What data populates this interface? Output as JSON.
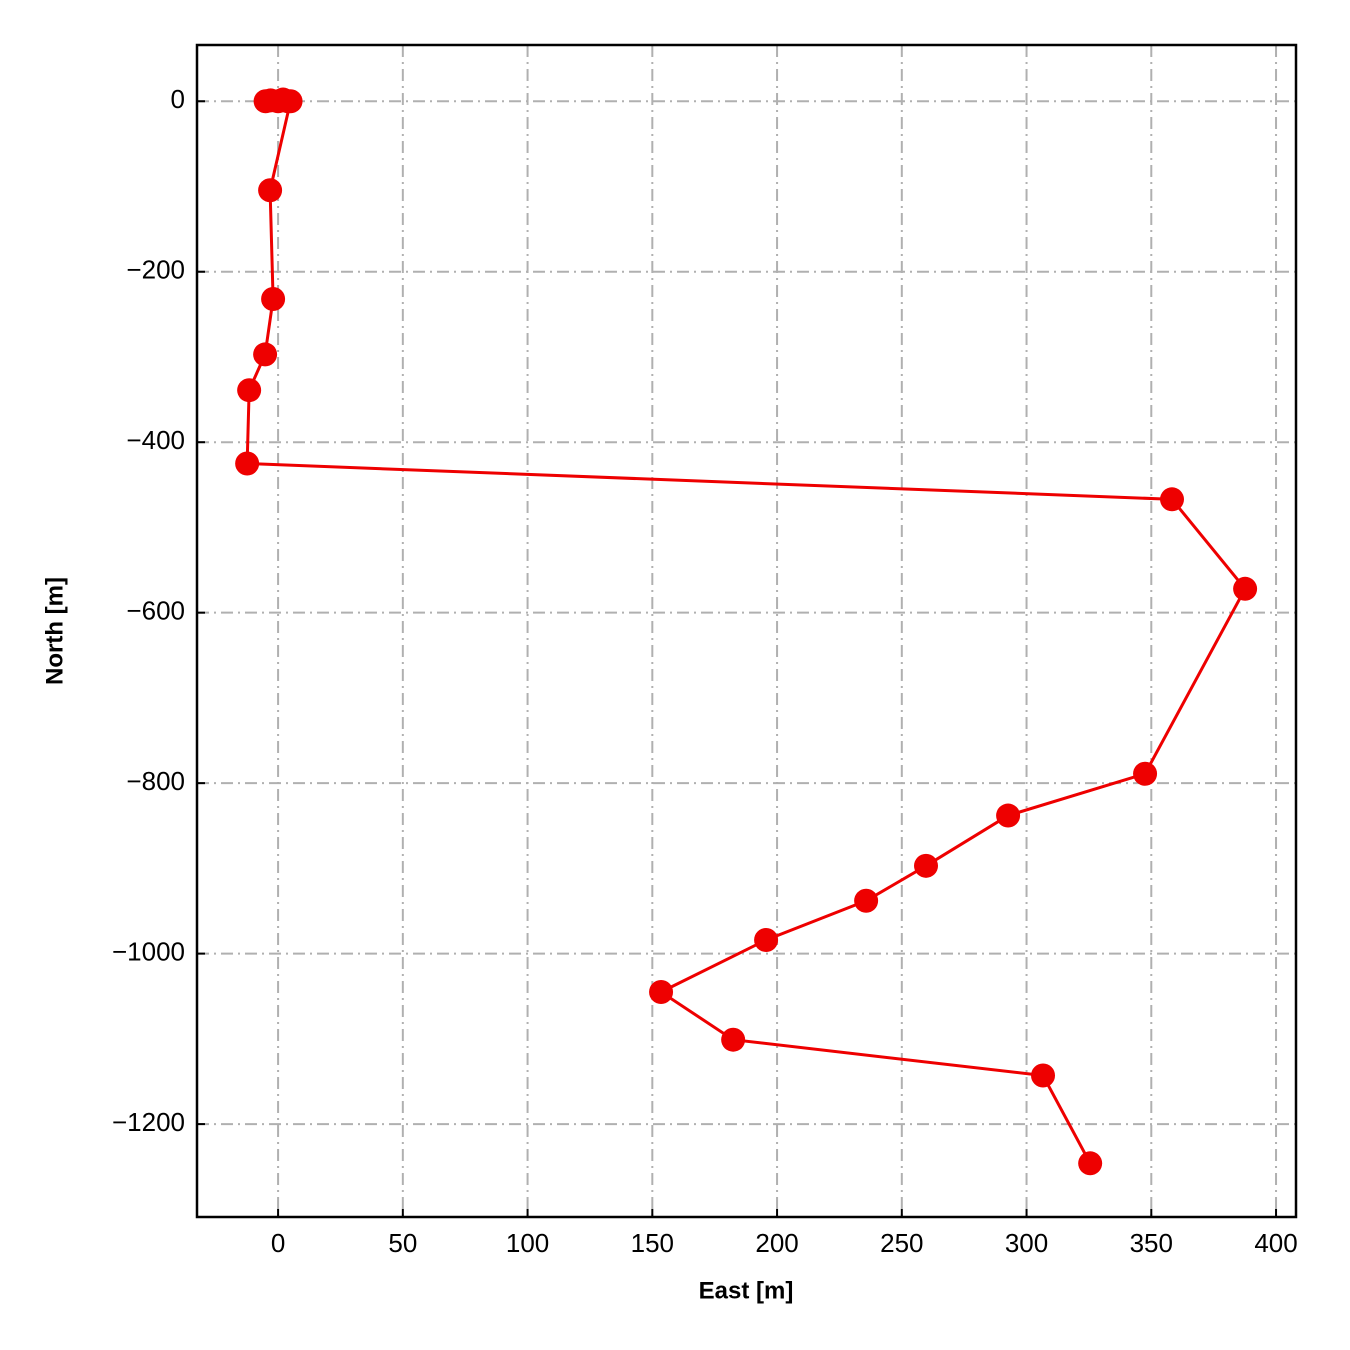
{
  "chart_data": {
    "type": "line",
    "x_label": "East [m]",
    "y_label": "North [m]",
    "x": [
      -5,
      -3,
      0,
      2,
      4,
      5,
      -3.2,
      -2,
      -5.2,
      -11.6,
      -12.4,
      358.3,
      387.6,
      347.5,
      292.6,
      259.7,
      235.7,
      195.6,
      153.5,
      182.4,
      306.6,
      325.5
    ],
    "values": [
      0,
      1,
      0,
      2,
      0,
      0,
      -104.4,
      -232,
      -297,
      -339,
      -425,
      -467,
      -572,
      -789,
      -838,
      -897,
      -938,
      -984,
      -1045,
      -1101,
      -1143,
      -1246
    ],
    "color": "#ee0000",
    "xlim": [
      -32.5,
      408
    ],
    "ylim": [
      -1309,
      66
    ],
    "xticks": [
      0,
      50,
      100,
      150,
      200,
      250,
      300,
      350,
      400
    ],
    "yticks": [
      0,
      {
        "value": -200,
        "label": "−200"
      },
      {
        "value": -400,
        "label": "−400"
      },
      {
        "value": -600,
        "label": "−600"
      },
      {
        "value": -800,
        "label": "−800"
      },
      {
        "value": -1000,
        "label": "−1000"
      },
      {
        "value": -1200,
        "label": "−1200"
      }
    ],
    "grid": true,
    "markers": true
  }
}
